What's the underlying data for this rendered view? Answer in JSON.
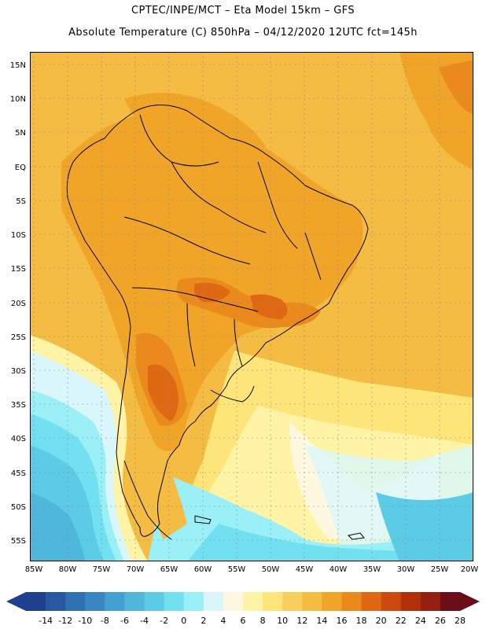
{
  "header": {
    "line1": "CPTEC/INPE/MCT –  Eta Model 15km – GFS",
    "line2": "Absolute Temperature (C) 850hPa – 04/12/2020 12UTC fct=145h"
  },
  "axes": {
    "lat_labels": [
      "15N",
      "10N",
      "5N",
      "EQ",
      "5S",
      "10S",
      "15S",
      "20S",
      "25S",
      "30S",
      "35S",
      "40S",
      "45S",
      "50S",
      "55S"
    ],
    "lon_labels": [
      "85W",
      "80W",
      "75W",
      "70W",
      "65W",
      "60W",
      "55W",
      "50W",
      "45W",
      "40W",
      "35W",
      "30W",
      "25W",
      "20W"
    ]
  },
  "colorbar": {
    "colors": [
      "#1f3f8f",
      "#2858a3",
      "#2f6fb4",
      "#3a86c3",
      "#45a0d2",
      "#4fb6dc",
      "#5ccbe6",
      "#72e0f0",
      "#9beff7",
      "#d9f7fb",
      "#fff8e1",
      "#fff4a6",
      "#fde57a",
      "#f8cf5c",
      "#f4bc43",
      "#f1a528",
      "#ea8a1c",
      "#df6912",
      "#cc4a0f",
      "#b22f0c",
      "#942010",
      "#6b0d18"
    ],
    "labels": [
      "-14",
      "-12",
      "-10",
      "-8",
      "-6",
      "-4",
      "-2",
      "0",
      "2",
      "4",
      "6",
      "8",
      "10",
      "12",
      "14",
      "16",
      "18",
      "20",
      "22",
      "24",
      "26",
      "28"
    ]
  }
}
